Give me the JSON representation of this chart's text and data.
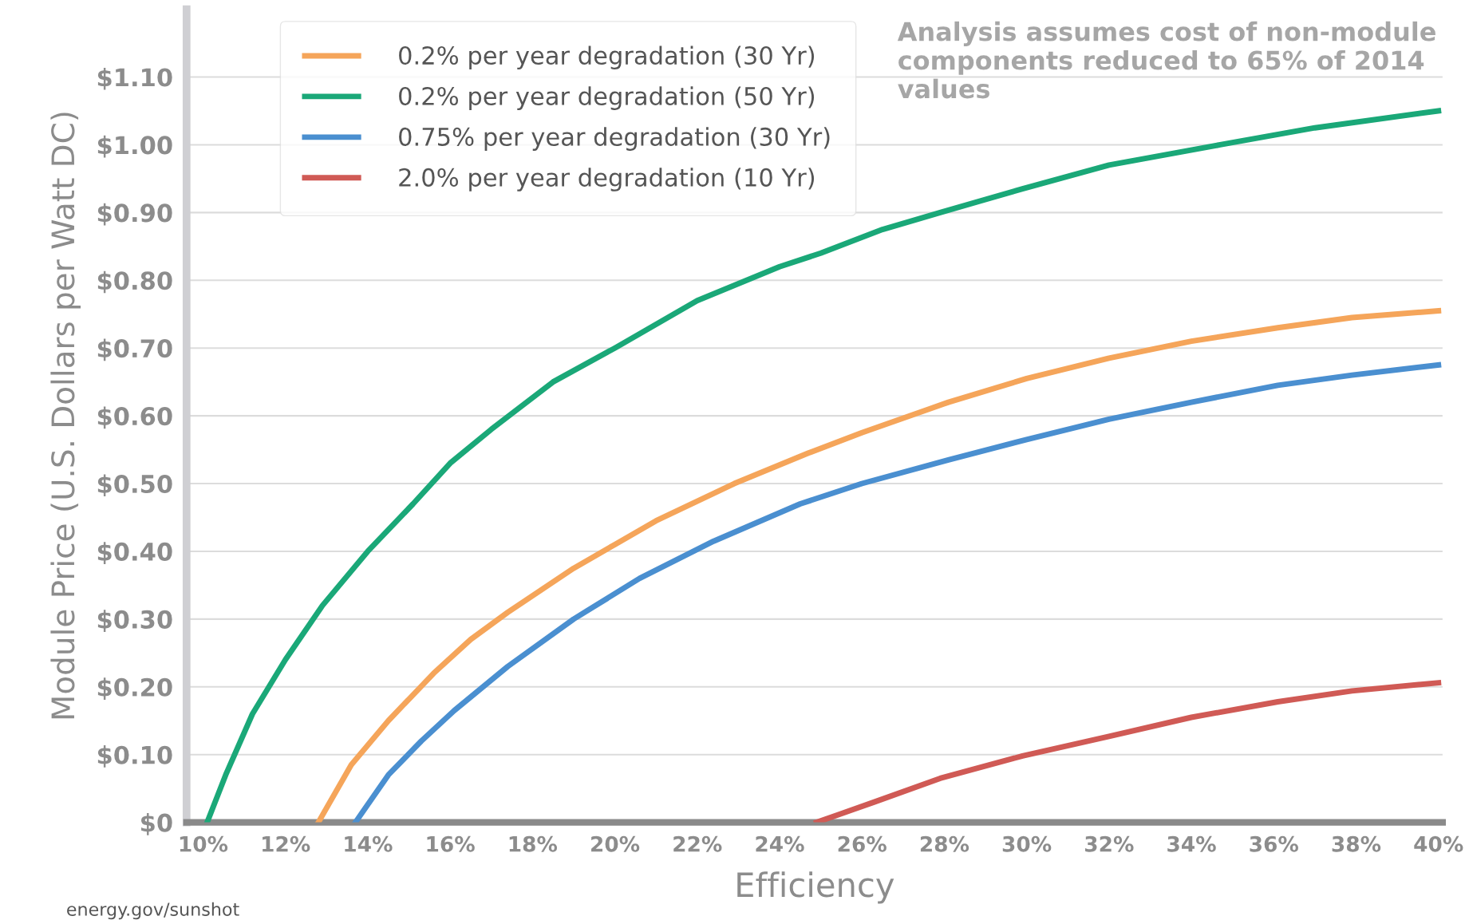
{
  "chart_data": {
    "type": "line",
    "xlabel": "Efficiency",
    "ylabel": "Module Price (U.S. Dollars per Watt DC)",
    "annotations": [
      "Analysis assumes cost of non-module components reduced to 65% of 2014 values",
      "energy.gov/sunshot"
    ],
    "series": [
      {
        "name": "0.2% per year degradation (30 Yr)",
        "color": "#f5a55a",
        "x": [
          12.8,
          13.6,
          14.5,
          15.6,
          16.5,
          17.4,
          19,
          20,
          21,
          22.9,
          24.7,
          26,
          28.1,
          30,
          32,
          34,
          36.1,
          37.9,
          40
        ],
        "values": [
          0,
          0.085,
          0.15,
          0.22,
          0.27,
          0.31,
          0.375,
          0.41,
          0.445,
          0.5,
          0.545,
          0.575,
          0.62,
          0.655,
          0.685,
          0.71,
          0.73,
          0.745,
          0.755
        ]
      },
      {
        "name": "0.2% per year degradation (50 Yr)",
        "color": "#1aa878",
        "x": [
          10.1,
          10.55,
          11.2,
          12,
          12.9,
          14,
          15.1,
          16,
          17,
          18.5,
          20,
          22,
          24,
          25,
          26.5,
          27.9,
          29.9,
          32,
          34.7,
          37,
          40
        ],
        "values": [
          0,
          0.07,
          0.16,
          0.24,
          0.32,
          0.4,
          0.47,
          0.53,
          0.58,
          0.65,
          0.7,
          0.77,
          0.82,
          0.84,
          0.875,
          0.9,
          0.935,
          0.97,
          1.0,
          1.025,
          1.05
        ]
      },
      {
        "name": "0.75% per year degradation (30 Yr)",
        "color": "#4a8fd0",
        "x": [
          13.7,
          14.5,
          15.3,
          16.1,
          17.4,
          19,
          20.6,
          22.4,
          24.5,
          26,
          28.1,
          30,
          32,
          34,
          36.1,
          37.9,
          40
        ],
        "values": [
          0,
          0.07,
          0.12,
          0.165,
          0.23,
          0.3,
          0.36,
          0.415,
          0.47,
          0.5,
          0.535,
          0.565,
          0.595,
          0.62,
          0.645,
          0.66,
          0.675
        ]
      },
      {
        "name": "2.0% per year degradation (10 Yr)",
        "color": "#d05a55",
        "x": [
          24.9,
          26.3,
          27.9,
          29.9,
          32,
          34,
          36.1,
          37.9,
          40
        ],
        "values": [
          0,
          0.03,
          0.065,
          0.098,
          0.127,
          0.155,
          0.178,
          0.194,
          0.206
        ]
      }
    ],
    "xlim": [
      9.6,
      40.1
    ],
    "ylim": [
      0,
      1.2
    ],
    "xticks": [
      {
        "value": 10,
        "label": "10%"
      },
      {
        "value": 12,
        "label": "12%"
      },
      {
        "value": 14,
        "label": "14%"
      },
      {
        "value": 16,
        "label": "16%"
      },
      {
        "value": 18,
        "label": "18%"
      },
      {
        "value": 20,
        "label": "20%"
      },
      {
        "value": 22,
        "label": "22%"
      },
      {
        "value": 24,
        "label": "24%"
      },
      {
        "value": 26,
        "label": "26%"
      },
      {
        "value": 28,
        "label": "28%"
      },
      {
        "value": 30,
        "label": "30%"
      },
      {
        "value": 32,
        "label": "32%"
      },
      {
        "value": 34,
        "label": "34%"
      },
      {
        "value": 36,
        "label": "36%"
      },
      {
        "value": 38,
        "label": "38%"
      },
      {
        "value": 40,
        "label": "40%"
      }
    ],
    "yticks": [
      {
        "value": 0,
        "label": "$0"
      },
      {
        "value": 0.1,
        "label": "$0.10"
      },
      {
        "value": 0.2,
        "label": "$0.20"
      },
      {
        "value": 0.3,
        "label": "$0.30"
      },
      {
        "value": 0.4,
        "label": "$0.40"
      },
      {
        "value": 0.5,
        "label": "$0.50"
      },
      {
        "value": 0.6,
        "label": "$0.60"
      },
      {
        "value": 0.7,
        "label": "$0.70"
      },
      {
        "value": 0.8,
        "label": "$0.80"
      },
      {
        "value": 0.9,
        "label": "$0.90"
      },
      {
        "value": 1.0,
        "label": "$1.00"
      },
      {
        "value": 1.1,
        "label": "$1.10"
      }
    ],
    "grid": "y",
    "legend": "top left",
    "marker": "none",
    "line_style": "solid"
  }
}
